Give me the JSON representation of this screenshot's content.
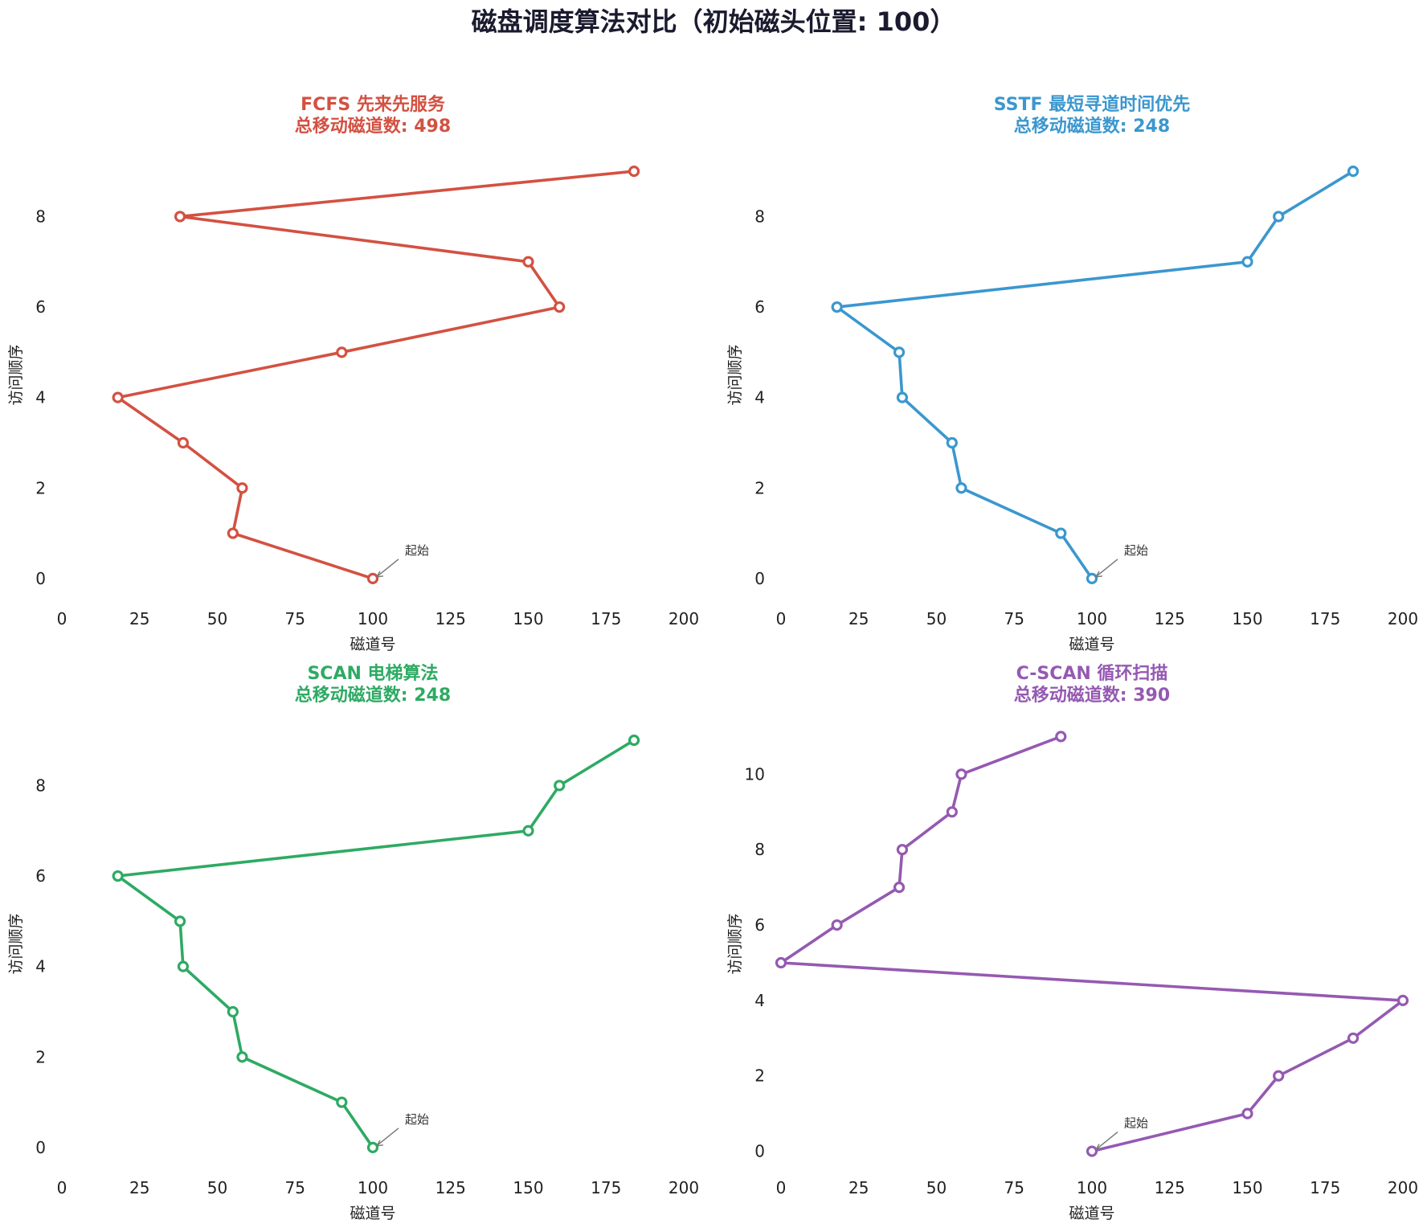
{
  "suptitle": "磁盘调度算法对比（初始磁头位置: 100）",
  "chart_data": [
    {
      "type": "line",
      "title": "FCFS 先来先服务",
      "subtitle": "总移动磁道数: 498",
      "color": "#d35142",
      "xlabel": "磁道号",
      "ylabel": "访问顺序",
      "xlim": [
        0,
        200
      ],
      "ylim": [
        -0.5,
        9.5
      ],
      "xticks": [
        0,
        25,
        50,
        75,
        100,
        125,
        150,
        175,
        200
      ],
      "yticks": [
        0,
        2,
        4,
        6,
        8
      ],
      "grid": false,
      "x": [
        100,
        55,
        58,
        39,
        18,
        90,
        160,
        150,
        38,
        184
      ],
      "y": [
        0,
        1,
        2,
        3,
        4,
        5,
        6,
        7,
        8,
        9
      ],
      "annotation": {
        "text": "起始",
        "x": 100,
        "y": 0
      }
    },
    {
      "type": "line",
      "title": "SSTF 最短寻道时间优先",
      "subtitle": "总移动磁道数: 248",
      "color": "#3b97cf",
      "xlabel": "磁道号",
      "ylabel": "访问顺序",
      "xlim": [
        0,
        200
      ],
      "ylim": [
        -0.5,
        9.5
      ],
      "xticks": [
        0,
        25,
        50,
        75,
        100,
        125,
        150,
        175,
        200
      ],
      "yticks": [
        0,
        2,
        4,
        6,
        8
      ],
      "grid": false,
      "x": [
        100,
        90,
        58,
        55,
        39,
        38,
        18,
        150,
        160,
        184
      ],
      "y": [
        0,
        1,
        2,
        3,
        4,
        5,
        6,
        7,
        8,
        9
      ],
      "annotation": {
        "text": "起始",
        "x": 100,
        "y": 0
      }
    },
    {
      "type": "line",
      "title": "SCAN 电梯算法",
      "subtitle": "总移动磁道数: 248",
      "color": "#2eaa63",
      "xlabel": "磁道号",
      "ylabel": "访问顺序",
      "xlim": [
        0,
        200
      ],
      "ylim": [
        -0.5,
        9.5
      ],
      "xticks": [
        0,
        25,
        50,
        75,
        100,
        125,
        150,
        175,
        200
      ],
      "yticks": [
        0,
        2,
        4,
        6,
        8
      ],
      "grid": false,
      "x": [
        100,
        90,
        58,
        55,
        39,
        38,
        18,
        150,
        160,
        184
      ],
      "y": [
        0,
        1,
        2,
        3,
        4,
        5,
        6,
        7,
        8,
        9
      ],
      "annotation": {
        "text": "起始",
        "x": 100,
        "y": 0
      }
    },
    {
      "type": "line",
      "title": "C-SCAN 循环扫描",
      "subtitle": "总移动磁道数: 390",
      "color": "#9559b2",
      "xlabel": "磁道号",
      "ylabel": "访问顺序",
      "xlim": [
        0,
        200
      ],
      "ylim": [
        -0.5,
        11.5
      ],
      "xticks": [
        0,
        25,
        50,
        75,
        100,
        125,
        150,
        175,
        200
      ],
      "yticks": [
        0,
        2,
        4,
        6,
        8,
        10
      ],
      "grid": false,
      "x": [
        100,
        150,
        160,
        184,
        200,
        0,
        18,
        38,
        39,
        55,
        58,
        90
      ],
      "y": [
        0,
        1,
        2,
        3,
        4,
        5,
        6,
        7,
        8,
        9,
        10,
        11
      ],
      "annotation": {
        "text": "起始",
        "x": 100,
        "y": 0
      }
    }
  ]
}
